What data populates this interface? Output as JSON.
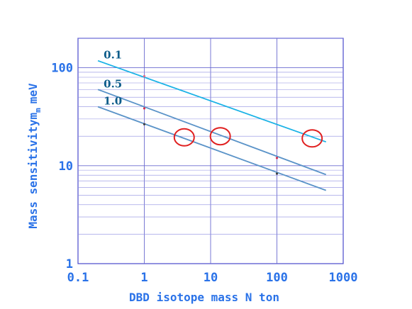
{
  "chart_data": {
    "type": "line",
    "xlabel": "DBD isotope mass N ton",
    "ylabel": "Mass sensitivity",
    "ylabel_symbol": "m",
    "ylabel_subscript": "m",
    "ylabel_unit": "meV",
    "x_scale": "log",
    "y_scale": "log",
    "xlim": [
      0.1,
      1000
    ],
    "ylim": [
      1,
      200
    ],
    "x_ticks": [
      0.1,
      1,
      10,
      100,
      1000
    ],
    "x_tick_labels": [
      "0.1",
      "1",
      "10",
      "100",
      "1000"
    ],
    "y_ticks": [
      1,
      10,
      100
    ],
    "y_tick_labels": [
      "1",
      "10",
      "100"
    ],
    "grid": true,
    "series": [
      {
        "name": "0.1",
        "color": "#1ab2e6",
        "x": [
          0.2,
          550
        ],
        "y": [
          118,
          17.5
        ]
      },
      {
        "name": "0.5",
        "color": "#5a93c8",
        "x": [
          0.2,
          550
        ],
        "y": [
          60,
          8.1
        ]
      },
      {
        "name": "1.0",
        "color": "#5a93c8",
        "x": [
          0.2,
          550
        ],
        "y": [
          40,
          5.6
        ]
      }
    ],
    "markers": [
      {
        "x": 1,
        "y": 82,
        "color": "#e06a8a"
      },
      {
        "x": 1,
        "y": 38.5,
        "color": "#d83050"
      },
      {
        "x": 1,
        "y": 26.5,
        "color": "#404040"
      },
      {
        "x": 100,
        "y": 12,
        "color": "#d83050"
      },
      {
        "x": 100,
        "y": 8.3,
        "color": "#404040"
      }
    ],
    "highlights": [
      {
        "x": 4,
        "y": 19.5,
        "color": "#e02020"
      },
      {
        "x": 14,
        "y": 20,
        "color": "#e02020"
      },
      {
        "x": 340,
        "y": 19,
        "color": "#e02020"
      }
    ]
  }
}
